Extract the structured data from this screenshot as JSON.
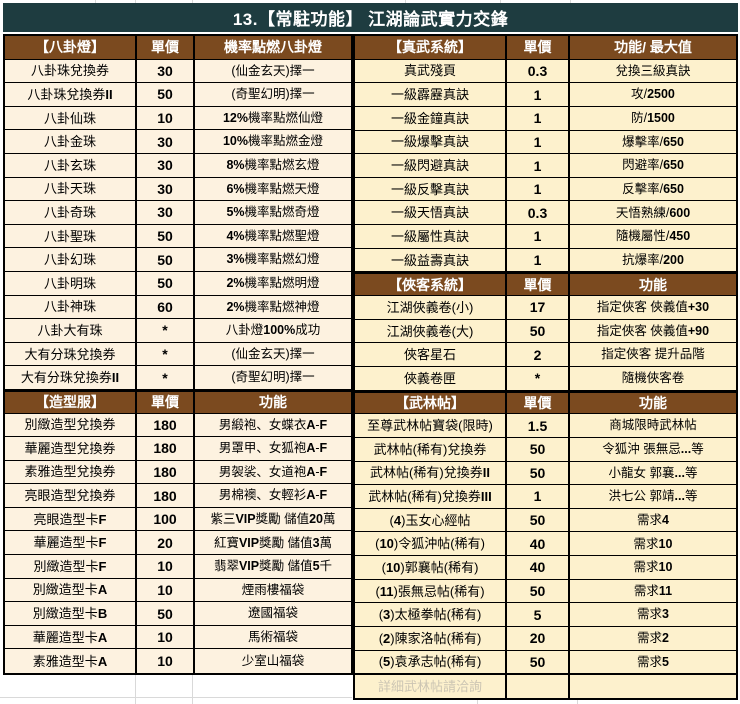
{
  "title": "13.【常駐功能】 江湖論武實力交鋒",
  "colors": {
    "title_bg": "#1e3c40",
    "title_text": "#ffffff",
    "section_header_bg": "#7b4a1f",
    "section_header_text": "#ffffff",
    "left_cell_bg": "#fdf2e0",
    "right_cell_bg": "#fdf1cd",
    "border": "#000000",
    "faded_note_text": "#ccc5b3"
  },
  "left_table": {
    "rows": [
      {
        "type": "header",
        "name": "【八卦燈】",
        "price": "單價",
        "fn": "機率點燃八卦燈"
      },
      {
        "name": "八卦珠兌換券",
        "price": "30",
        "fn": "(仙金玄天)擇一"
      },
      {
        "name": "八卦珠兌換券II",
        "price": "50",
        "fn": "(奇聖幻明)擇一"
      },
      {
        "name": "八卦仙珠",
        "price": "10",
        "fn": "12%機率點燃仙燈"
      },
      {
        "name": "八卦金珠",
        "price": "30",
        "fn": "10%機率點燃金燈"
      },
      {
        "name": "八卦玄珠",
        "price": "30",
        "fn": "8%機率點燃玄燈"
      },
      {
        "name": "八卦天珠",
        "price": "30",
        "fn": "6%機率點燃天燈"
      },
      {
        "name": "八卦奇珠",
        "price": "30",
        "fn": "5%機率點燃奇燈"
      },
      {
        "name": "八卦聖珠",
        "price": "50",
        "fn": "4%機率點燃聖燈"
      },
      {
        "name": "八卦幻珠",
        "price": "50",
        "fn": "3%機率點燃幻燈"
      },
      {
        "name": "八卦明珠",
        "price": "50",
        "fn": "2%機率點燃明燈"
      },
      {
        "name": "八卦神珠",
        "price": "60",
        "fn": "2%機率點燃神燈"
      },
      {
        "name": "八卦大有珠",
        "price": "*",
        "fn": "八卦燈100%成功"
      },
      {
        "name": "大有分珠兌換券",
        "price": "*",
        "fn": "(仙金玄天)擇一"
      },
      {
        "name": "大有分珠兌換券II",
        "price": "*",
        "fn": "(奇聖幻明)擇一"
      },
      {
        "type": "header",
        "name": "【造型服】",
        "price": "單價",
        "fn": "功能"
      },
      {
        "name": "別緻造型兌換券",
        "price": "180",
        "fn": "男緞袍、女蝶衣 A-F"
      },
      {
        "name": "華麗造型兌換券",
        "price": "180",
        "fn": "男罩甲、女狐袍 A-F"
      },
      {
        "name": "素雅造型兌換券",
        "price": "180",
        "fn": "男袈裟、女道袍 A-F"
      },
      {
        "name": "亮眼造型兌換券",
        "price": "180",
        "fn": "男棉襖、女輕衫 A-F"
      },
      {
        "name": "亮眼造型卡F",
        "price": "100",
        "fn": "紫三VIP獎勵 儲值20萬"
      },
      {
        "name": "華麗造型卡F",
        "price": "20",
        "fn": "紅寶VIP獎勵 儲值3萬"
      },
      {
        "name": "別緻造型卡F",
        "price": "10",
        "fn": "翡翠VIP獎勵 儲值5千"
      },
      {
        "name": "別緻造型卡A",
        "price": "10",
        "fn": "煙雨樓福袋"
      },
      {
        "name": "別緻造型卡B",
        "price": "50",
        "fn": "遼國福袋"
      },
      {
        "name": "華麗造型卡A",
        "price": "10",
        "fn": "馬術福袋"
      },
      {
        "name": "素雅造型卡A",
        "price": "10",
        "fn": "少室山福袋"
      }
    ]
  },
  "right_table": {
    "rows": [
      {
        "type": "header",
        "name": "【真武系統】",
        "price": "單價",
        "fn": "功能/ 最大值"
      },
      {
        "name": "真武殘頁",
        "price": "0.3",
        "fn": "兌換三級真訣"
      },
      {
        "name": "一級霹靂真訣",
        "price": "1",
        "fn": "攻/ 2500"
      },
      {
        "name": "一級金鐘真訣",
        "price": "1",
        "fn": "防/1500"
      },
      {
        "name": "一級爆擊真訣",
        "price": "1",
        "fn": "爆擊率/ 650"
      },
      {
        "name": "一級閃避真訣",
        "price": "1",
        "fn": "閃避率/ 650"
      },
      {
        "name": "一級反擊真訣",
        "price": "1",
        "fn": "反擊率/ 650"
      },
      {
        "name": "一級天悟真訣",
        "price": "0.3",
        "fn": "天悟熟練/ 600"
      },
      {
        "name": "一級屬性真訣",
        "price": "1",
        "fn": "隨機屬性/ 450"
      },
      {
        "name": "一級益壽真訣",
        "price": "1",
        "fn": "抗爆率/ 200"
      },
      {
        "type": "header",
        "name": "【俠客系統】",
        "price": "單價",
        "fn": "功能"
      },
      {
        "name": "江湖俠義卷(小)",
        "price": "17",
        "fn": "指定俠客 俠義值+30"
      },
      {
        "name": "江湖俠義卷(大)",
        "price": "50",
        "fn": "指定俠客 俠義值+90"
      },
      {
        "name": "俠客星石",
        "price": "2",
        "fn": "指定俠客 提升品階"
      },
      {
        "name": "俠義卷匣",
        "price": "*",
        "fn": "隨機俠客卷"
      },
      {
        "type": "header",
        "name": "【武林帖】",
        "price": "單價",
        "fn": "功能"
      },
      {
        "name": "至尊武林帖寶袋(限時)",
        "price": "1.5",
        "fn": "商城限時武林帖"
      },
      {
        "name": "武林帖(稀有)兌換券",
        "price": "50",
        "fn": "令狐沖 張無忌...等"
      },
      {
        "name": "武林帖(稀有)兌換券II",
        "price": "50",
        "fn": "小龍女 郭襄...等"
      },
      {
        "name": "武林帖(稀有)兌換券III",
        "price": "1",
        "fn": "洪七公 郭靖...等"
      },
      {
        "name": "(4)玉女心經帖",
        "price": "50",
        "fn": "需求4"
      },
      {
        "name": "(10)令狐沖帖(稀有)",
        "price": "40",
        "fn": "需求10"
      },
      {
        "name": "(10)郭襄帖(稀有)",
        "price": "40",
        "fn": "需求10"
      },
      {
        "name": "(11)張無忌帖(稀有)",
        "price": "50",
        "fn": "需求11"
      },
      {
        "name": "(3)太極拳帖(稀有)",
        "price": "5",
        "fn": "需求3"
      },
      {
        "name": "(2)陳家洛帖(稀有)",
        "price": "20",
        "fn": "需求2"
      },
      {
        "name": "(5)袁承志帖(稀有)",
        "price": "50",
        "fn": "需求5"
      },
      {
        "type": "faded",
        "name": "詳細武林帖請洽詢",
        "price": "",
        "fn": ""
      }
    ]
  }
}
